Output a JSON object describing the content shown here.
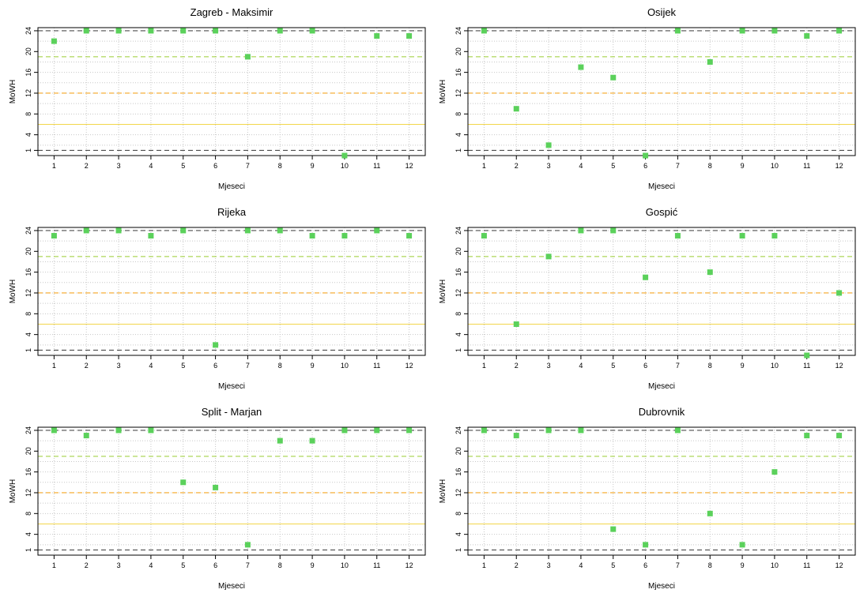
{
  "chart_data": [
    {
      "type": "scatter",
      "title": "Zagreb - Maksimir",
      "xlabel": "Mjeseci",
      "ylabel": "MoWH",
      "x": [
        1,
        2,
        3,
        4,
        5,
        6,
        7,
        8,
        9,
        10,
        11,
        12
      ],
      "values": [
        22,
        24,
        24,
        24,
        24,
        24,
        19,
        24,
        24,
        0,
        23,
        23
      ],
      "xticks": [
        "1",
        "2",
        "3",
        "4",
        "5",
        "6",
        "7",
        "8",
        "9",
        "10",
        "11",
        "12"
      ],
      "yticks": [
        "1",
        "4",
        "8",
        "12",
        "16",
        "20",
        "24"
      ],
      "ylim": [
        1,
        24
      ],
      "grid": true
    },
    {
      "type": "scatter",
      "title": "Osijek",
      "xlabel": "Mjeseci",
      "ylabel": "MoWH",
      "x": [
        1,
        2,
        3,
        4,
        5,
        6,
        7,
        8,
        9,
        10,
        11,
        12
      ],
      "values": [
        24,
        9,
        2,
        17,
        15,
        0,
        24,
        18,
        24,
        24,
        23,
        24
      ],
      "xticks": [
        "1",
        "2",
        "3",
        "4",
        "5",
        "6",
        "7",
        "8",
        "9",
        "10",
        "11",
        "12"
      ],
      "yticks": [
        "1",
        "4",
        "8",
        "12",
        "16",
        "20",
        "24"
      ],
      "ylim": [
        1,
        24
      ],
      "grid": true
    },
    {
      "type": "scatter",
      "title": "Rijeka",
      "xlabel": "Mjeseci",
      "ylabel": "MoWH",
      "x": [
        1,
        2,
        3,
        4,
        5,
        6,
        7,
        8,
        9,
        10,
        11,
        12
      ],
      "values": [
        23,
        24,
        24,
        23,
        24,
        2,
        24,
        24,
        23,
        23,
        24,
        23
      ],
      "xticks": [
        "1",
        "2",
        "3",
        "4",
        "5",
        "6",
        "7",
        "8",
        "9",
        "10",
        "11",
        "12"
      ],
      "yticks": [
        "1",
        "4",
        "8",
        "12",
        "16",
        "20",
        "24"
      ],
      "ylim": [
        1,
        24
      ],
      "grid": true
    },
    {
      "type": "scatter",
      "title": "Gospić",
      "xlabel": "Mjeseci",
      "ylabel": "MoWH",
      "x": [
        1,
        2,
        3,
        4,
        5,
        6,
        7,
        8,
        9,
        10,
        11,
        12
      ],
      "values": [
        23,
        6,
        19,
        24,
        24,
        15,
        23,
        16,
        23,
        23,
        0,
        12
      ],
      "xticks": [
        "1",
        "2",
        "3",
        "4",
        "5",
        "6",
        "7",
        "8",
        "9",
        "10",
        "11",
        "12"
      ],
      "yticks": [
        "1",
        "4",
        "8",
        "12",
        "16",
        "20",
        "24"
      ],
      "ylim": [
        1,
        24
      ],
      "grid": true
    },
    {
      "type": "scatter",
      "title": "Split - Marjan",
      "xlabel": "Mjeseci",
      "ylabel": "MoWH",
      "x": [
        1,
        2,
        3,
        4,
        5,
        6,
        7,
        8,
        9,
        10,
        11,
        12
      ],
      "values": [
        24,
        23,
        24,
        24,
        14,
        13,
        2,
        22,
        22,
        24,
        24,
        24
      ],
      "xticks": [
        "1",
        "2",
        "3",
        "4",
        "5",
        "6",
        "7",
        "8",
        "9",
        "10",
        "11",
        "12"
      ],
      "yticks": [
        "1",
        "4",
        "8",
        "12",
        "16",
        "20",
        "24"
      ],
      "ylim": [
        1,
        24
      ],
      "grid": true
    },
    {
      "type": "scatter",
      "title": "Dubrovnik",
      "xlabel": "Mjeseci",
      "ylabel": "MoWH",
      "x": [
        1,
        2,
        3,
        4,
        5,
        6,
        7,
        8,
        9,
        10,
        11,
        12
      ],
      "values": [
        24,
        23,
        24,
        24,
        5,
        2,
        24,
        8,
        2,
        16,
        23,
        23
      ],
      "xticks": [
        "1",
        "2",
        "3",
        "4",
        "5",
        "6",
        "7",
        "8",
        "9",
        "10",
        "11",
        "12"
      ],
      "yticks": [
        "1",
        "4",
        "8",
        "12",
        "16",
        "20",
        "24"
      ],
      "ylim": [
        1,
        24
      ],
      "grid": true
    }
  ],
  "reference_lines": [
    {
      "y": 24,
      "color": "#4d4d4d",
      "style": "dashed"
    },
    {
      "y": 19,
      "color": "#9acd32",
      "style": "dashed"
    },
    {
      "y": 12,
      "color": "#f5a623",
      "style": "dashed"
    },
    {
      "y": 6,
      "color": "#f2d64b",
      "style": "solid"
    },
    {
      "y": 1,
      "color": "#4d4d4d",
      "style": "dashed"
    }
  ],
  "colors": {
    "point": "#5bd15b",
    "grid": "#c8c8c8",
    "axis": "#000000"
  }
}
